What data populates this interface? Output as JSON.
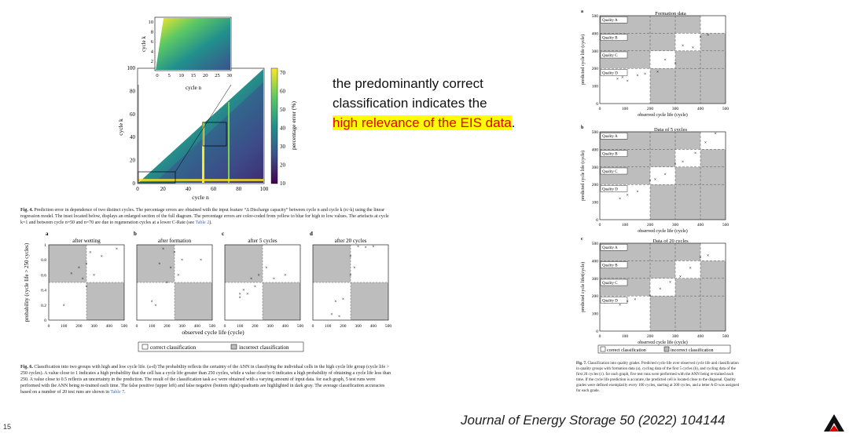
{
  "slide_number": "15",
  "citation": "Journal of Energy Storage 50 (2022) 104144",
  "main_text": {
    "line1": "the predominantly correct",
    "line2": "classification indicates the",
    "highlight": "high relevance of the EIS data",
    "end": "."
  },
  "fig4": {
    "ylabel": "cycle k",
    "xlabel": "cycle n",
    "colorbar_label": "percentage error (%)",
    "xticks": [
      "0",
      "20",
      "40",
      "60",
      "80",
      "100"
    ],
    "yticks": [
      "0",
      "20",
      "40",
      "60",
      "80",
      "100"
    ],
    "cbar_ticks": [
      "10",
      "20",
      "30",
      "40",
      "50",
      "60",
      "70"
    ],
    "inset_xlabel": "cycle n",
    "inset_ylabel": "cycle k",
    "inset_xticks": [
      "0",
      "5",
      "10",
      "15",
      "20",
      "25",
      "30"
    ],
    "inset_yticks": [
      "2",
      "4",
      "6",
      "8",
      "10"
    ],
    "caption_label": "Fig. 4.",
    "caption": "Prediction error in dependence of two distinct cycles. The percentage errors are obtained with the input feature “Δ Discharge capacity” between cycle n and cycle k (n>k) using the linear regression model. The inset located below, displays an enlarged section of the full diagram. The percentage errors are color-coded from yellow to blue for high to low values. The artefacts at cycle k=1 and between cycle n=50 and n=70 are due to regeneration cycles at a lower C-Rate (see",
    "caption_link": "Table 2",
    "caption_end": ")."
  },
  "fig6": {
    "panels": [
      {
        "letter": "a",
        "title": "after wetting"
      },
      {
        "letter": "b",
        "title": "after formation"
      },
      {
        "letter": "c",
        "title": "after 5 cycles"
      },
      {
        "letter": "d",
        "title": "after 20 cycles"
      }
    ],
    "ylabel": "probability (cycle life > 250 cycles)",
    "xlabel": "observed cycle life (cycle)",
    "yticks": [
      "0",
      "0.2",
      "0.4",
      "0.6",
      "0.8",
      "1"
    ],
    "xticks": [
      "0",
      "100",
      "200",
      "300",
      "400",
      "500"
    ],
    "legend_correct": "correct classification",
    "legend_incorrect": "incorrect classification",
    "caption_label": "Fig. 6.",
    "caption": "Classification into two groups with high and low cycle life. (a-d) The probability reflects the certainty of the ANN in classifying the individual cells in the high cycle life group (cycle life > 250 cycles). A value close to 1 indicates a high probability that the cell has a cycle life greater than 250 cycles, while a value close to 0 indicates a high probability of obtaining a cycle life less than 250. A value close to 0.5 reflects an uncertainty in the prediction. The result of the classification task a-c were obtained with a varying amount of input data. for each graph, 5 test runs were performed with the ANN being re-trained each time. The false positive (upper left) and false negative (bottom right) quadrants are highlighted in dark gray. The average classification accuracies based on a number of 20 test runs are shown in",
    "caption_link": "Table 7",
    "caption_end": "."
  },
  "fig7": {
    "panels": [
      {
        "letter": "a",
        "title": "Formation data"
      },
      {
        "letter": "b",
        "title": "Data of 5 cycles"
      },
      {
        "letter": "c",
        "title": "Data of 20 cycles"
      }
    ],
    "ylabel_ab": "predicted cycle life (cycle)",
    "ylabel_c": "predicted cycle lifet(cycle)",
    "xlabel": "observed cycle life (cycle)",
    "xticks": [
      "0",
      "100",
      "200",
      "300",
      "400",
      "500"
    ],
    "yticks": [
      "0",
      "100",
      "200",
      "300",
      "400",
      "500"
    ],
    "qualities": [
      "Quality A",
      "Quality B",
      "Quality C",
      "Quality D"
    ],
    "legend_correct": "correct classification",
    "legend_incorrect": "incorrect classification",
    "caption_label": "Fig. 7.",
    "caption": "Classification into quality grades. Predicted cycle life over observed cycle life and classification in quality groups with formation data (a), cycling data of the first 5 cycles (b), and cycling data of the first 20 cycles (c). for each graph, five test runs were performed with the ANN being re-trained each time. If the cycle life prediction is accurate, the predicted cell is located close to the diagonal. Quality grades were defined exemplarily every 100 cycles, starting at 200 cycles, and a letter A-D was assigned for each grade."
  }
}
